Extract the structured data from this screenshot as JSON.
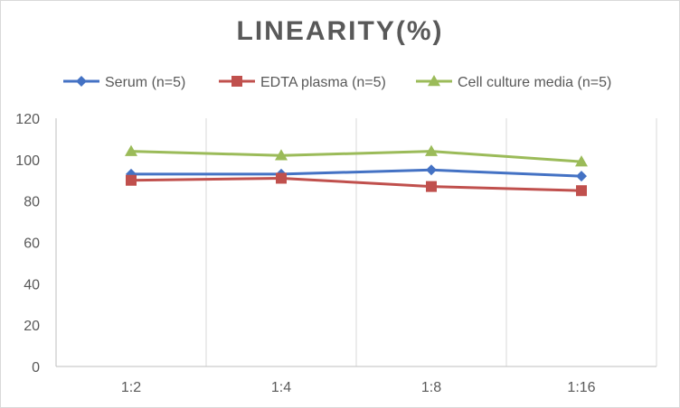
{
  "chart_data": {
    "type": "line",
    "title": "LINEARITY(%)",
    "xlabel": "",
    "ylabel": "",
    "categories": [
      "1:2",
      "1:4",
      "1:8",
      "1:16"
    ],
    "ylim": [
      0,
      120
    ],
    "yticks": [
      0,
      20,
      40,
      60,
      80,
      100,
      120
    ],
    "grid": "vertical",
    "legend": "top",
    "series": [
      {
        "name": "Serum (n=5)",
        "values": [
          93,
          93,
          95,
          92
        ],
        "color": "#4472c4",
        "marker": "diamond"
      },
      {
        "name": "EDTA plasma (n=5)",
        "values": [
          90,
          91,
          87,
          85
        ],
        "color": "#c0504d",
        "marker": "square"
      },
      {
        "name": "Cell culture media (n=5)",
        "values": [
          104,
          102,
          104,
          99
        ],
        "color": "#9bbb59",
        "marker": "triangle"
      }
    ]
  }
}
